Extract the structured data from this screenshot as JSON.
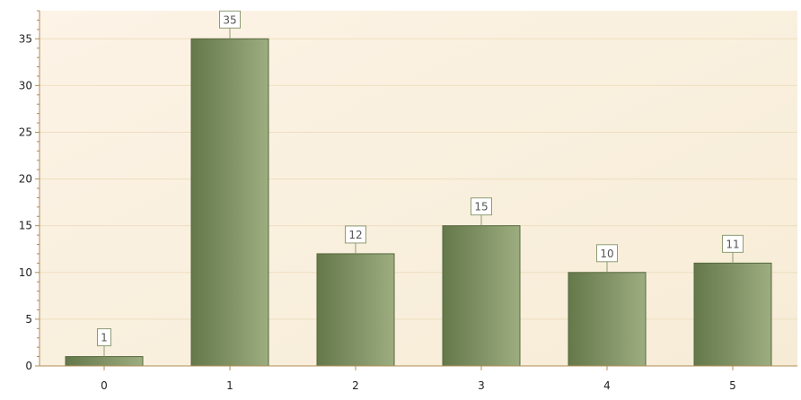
{
  "chart_data": {
    "type": "bar",
    "title": "",
    "xlabel": "",
    "ylabel": "",
    "categories": [
      "0",
      "1",
      "2",
      "3",
      "4",
      "5"
    ],
    "values": [
      1,
      35,
      12,
      15,
      10,
      11
    ],
    "data_labels": [
      "1",
      "35",
      "12",
      "15",
      "10",
      "11"
    ],
    "ylim": [
      0,
      38
    ],
    "yticks": [
      0,
      5,
      10,
      15,
      20,
      25,
      30,
      35
    ],
    "ytick_labels": [
      "0",
      "5",
      "10",
      "15",
      "20",
      "25",
      "30",
      "35"
    ],
    "grid": true,
    "legend": "none",
    "colors": {
      "bar_dark": "#64784a",
      "bar_light": "#9dad80",
      "bar_edge": "#56683e",
      "plot_bg_top_left": "#fdf3e6",
      "plot_bg_bottom_right": "#f6ecd6",
      "grid": "#eedfc0",
      "axis": "#b08c55",
      "label_border": "#8e9c74"
    }
  }
}
